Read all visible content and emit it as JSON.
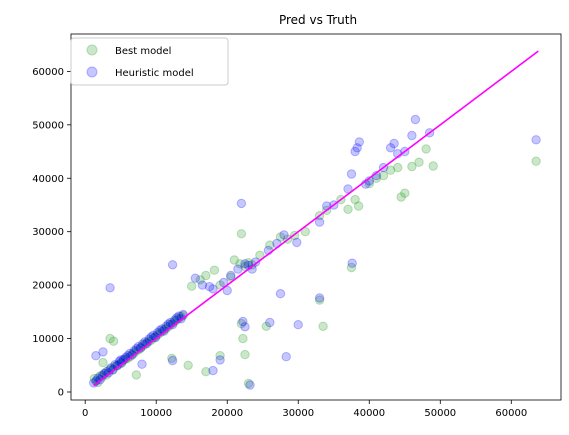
{
  "chart_data": {
    "type": "scatter",
    "title": "Pred vs Truth",
    "xlabel": "",
    "ylabel": "",
    "xlim": [
      -2000,
      67000
    ],
    "ylim": [
      -1500,
      67000
    ],
    "xticks": [
      0,
      10000,
      20000,
      30000,
      40000,
      50000,
      60000
    ],
    "yticks": [
      0,
      10000,
      20000,
      30000,
      40000,
      50000,
      60000
    ],
    "grid": false,
    "legend": "top-left",
    "reference_line": {
      "x": [
        1200,
        63800
      ],
      "y": [
        1200,
        63800
      ],
      "color": "#ff00ff"
    },
    "series": [
      {
        "name": "Best model",
        "color": "#2ca02c",
        "alpha": 0.25,
        "points": [
          [
            1300,
            2500
          ],
          [
            1600,
            2200
          ],
          [
            1800,
            1800
          ],
          [
            2100,
            3000
          ],
          [
            2400,
            2800
          ],
          [
            2700,
            3500
          ],
          [
            3000,
            3200
          ],
          [
            3300,
            4000
          ],
          [
            3600,
            4300
          ],
          [
            3900,
            4100
          ],
          [
            4200,
            4800
          ],
          [
            4500,
            5000
          ],
          [
            4800,
            5200
          ],
          [
            5100,
            5600
          ],
          [
            5400,
            5900
          ],
          [
            5700,
            6200
          ],
          [
            6000,
            6300
          ],
          [
            6300,
            6600
          ],
          [
            6600,
            7100
          ],
          [
            6900,
            7300
          ],
          [
            7200,
            7700
          ],
          [
            7500,
            7900
          ],
          [
            7800,
            8300
          ],
          [
            8100,
            8600
          ],
          [
            8400,
            8900
          ],
          [
            8700,
            9300
          ],
          [
            9000,
            9500
          ],
          [
            9300,
            9700
          ],
          [
            9600,
            10100
          ],
          [
            9900,
            10400
          ],
          [
            10200,
            10700
          ],
          [
            10500,
            11000
          ],
          [
            10800,
            11300
          ],
          [
            11100,
            11700
          ],
          [
            11400,
            11900
          ],
          [
            11700,
            12200
          ],
          [
            12000,
            12600
          ],
          [
            12300,
            12900
          ],
          [
            12600,
            13200
          ],
          [
            12900,
            13500
          ],
          [
            13200,
            13800
          ],
          [
            13500,
            14100
          ],
          [
            13800,
            14300
          ],
          [
            3500,
            10000
          ],
          [
            4000,
            9500
          ],
          [
            2500,
            5500
          ],
          [
            7200,
            3200
          ],
          [
            12200,
            6300
          ],
          [
            15000,
            19800
          ],
          [
            16200,
            21000
          ],
          [
            17000,
            21800
          ],
          [
            18200,
            22800
          ],
          [
            19000,
            20000
          ],
          [
            20500,
            21500
          ],
          [
            21000,
            24700
          ],
          [
            21800,
            24000
          ],
          [
            22500,
            23500
          ],
          [
            23000,
            24200
          ],
          [
            23500,
            23800
          ],
          [
            24600,
            25600
          ],
          [
            22000,
            29600
          ],
          [
            26000,
            27500
          ],
          [
            27500,
            29000
          ],
          [
            28500,
            28600
          ],
          [
            29500,
            29300
          ],
          [
            31000,
            30000
          ],
          [
            33000,
            33000
          ],
          [
            34000,
            34000
          ],
          [
            36000,
            36000
          ],
          [
            37000,
            34200
          ],
          [
            38000,
            36000
          ],
          [
            38500,
            34800
          ],
          [
            40000,
            39000
          ],
          [
            41000,
            40000
          ],
          [
            42000,
            40500
          ],
          [
            43000,
            41500
          ],
          [
            44000,
            42000
          ],
          [
            44500,
            36500
          ],
          [
            45000,
            37200
          ],
          [
            46000,
            42200
          ],
          [
            47000,
            43000
          ],
          [
            48000,
            45500
          ],
          [
            49000,
            42300
          ],
          [
            63500,
            43200
          ],
          [
            22000,
            12800
          ],
          [
            22200,
            10000
          ],
          [
            22500,
            7000
          ],
          [
            23000,
            1600
          ],
          [
            25500,
            12300
          ],
          [
            33000,
            17200
          ],
          [
            33500,
            12300
          ],
          [
            37500,
            23300
          ],
          [
            19000,
            6800
          ],
          [
            17000,
            3800
          ],
          [
            14500,
            5000
          ]
        ]
      },
      {
        "name": "Heuristic model",
        "color": "#0000ff",
        "alpha": 0.22,
        "points": [
          [
            1200,
            1700
          ],
          [
            1500,
            2000
          ],
          [
            1800,
            2600
          ],
          [
            2100,
            2300
          ],
          [
            2400,
            3100
          ],
          [
            2700,
            3400
          ],
          [
            3000,
            3800
          ],
          [
            3300,
            3600
          ],
          [
            3600,
            4500
          ],
          [
            3900,
            4200
          ],
          [
            4200,
            5100
          ],
          [
            4500,
            4900
          ],
          [
            4800,
            5700
          ],
          [
            5100,
            5400
          ],
          [
            5400,
            6100
          ],
          [
            5700,
            6500
          ],
          [
            6000,
            6800
          ],
          [
            6300,
            7200
          ],
          [
            6600,
            6900
          ],
          [
            6900,
            7700
          ],
          [
            7200,
            8100
          ],
          [
            7500,
            8500
          ],
          [
            7800,
            8200
          ],
          [
            8100,
            9000
          ],
          [
            8400,
            9400
          ],
          [
            8700,
            9100
          ],
          [
            9000,
            9900
          ],
          [
            9300,
            10300
          ],
          [
            9600,
            10600
          ],
          [
            9900,
            10200
          ],
          [
            10200,
            11100
          ],
          [
            10500,
            11500
          ],
          [
            10800,
            11800
          ],
          [
            11100,
            11400
          ],
          [
            11400,
            12300
          ],
          [
            11700,
            12700
          ],
          [
            12000,
            13000
          ],
          [
            12300,
            12600
          ],
          [
            12600,
            13500
          ],
          [
            12900,
            13900
          ],
          [
            13200,
            14200
          ],
          [
            13500,
            13700
          ],
          [
            13800,
            14500
          ],
          [
            1500,
            6800
          ],
          [
            2500,
            7500
          ],
          [
            3500,
            19500
          ],
          [
            5000,
            6000
          ],
          [
            8000,
            5200
          ],
          [
            12300,
            23800
          ],
          [
            12300,
            5900
          ],
          [
            15500,
            21300
          ],
          [
            16500,
            20000
          ],
          [
            17500,
            19700
          ],
          [
            18000,
            19300
          ],
          [
            19500,
            20500
          ],
          [
            20500,
            21800
          ],
          [
            21500,
            23000
          ],
          [
            22000,
            35300
          ],
          [
            22500,
            24000
          ],
          [
            23500,
            23000
          ],
          [
            24000,
            24300
          ],
          [
            25800,
            26500
          ],
          [
            27000,
            27800
          ],
          [
            28000,
            29400
          ],
          [
            29800,
            28000
          ],
          [
            33000,
            31800
          ],
          [
            34000,
            34800
          ],
          [
            35000,
            35000
          ],
          [
            37000,
            38000
          ],
          [
            37500,
            40800
          ],
          [
            38000,
            45000
          ],
          [
            38300,
            45700
          ],
          [
            38600,
            46800
          ],
          [
            39500,
            38900
          ],
          [
            40000,
            39500
          ],
          [
            41000,
            40500
          ],
          [
            42000,
            42000
          ],
          [
            43000,
            45700
          ],
          [
            43500,
            46500
          ],
          [
            44000,
            44600
          ],
          [
            45000,
            45000
          ],
          [
            46000,
            48000
          ],
          [
            46500,
            51000
          ],
          [
            48500,
            48500
          ],
          [
            63500,
            47200
          ],
          [
            22200,
            13200
          ],
          [
            22500,
            12200
          ],
          [
            23200,
            1300
          ],
          [
            28300,
            6600
          ],
          [
            30000,
            12600
          ],
          [
            27500,
            18400
          ],
          [
            37600,
            24100
          ],
          [
            33000,
            17600
          ],
          [
            18000,
            4000
          ],
          [
            19000,
            6000
          ],
          [
            26000,
            13000
          ],
          [
            20000,
            19000
          ],
          [
            23000,
            23700
          ]
        ]
      }
    ]
  }
}
